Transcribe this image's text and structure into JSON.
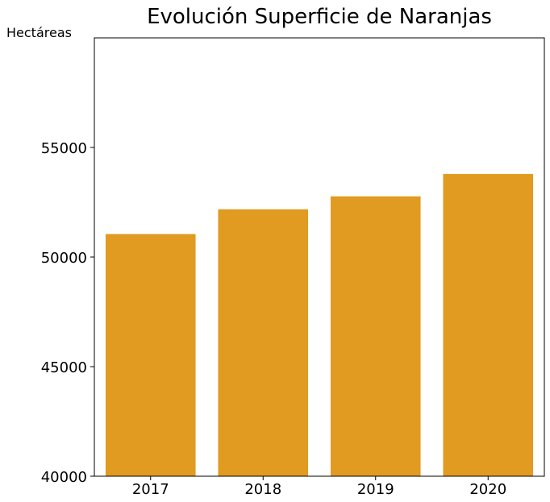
{
  "chart_data": {
    "type": "bar",
    "title": "Evolución Superficie de Naranjas",
    "xlabel": "",
    "ylabel": "Hectáreas",
    "categories": [
      "2017",
      "2018",
      "2019",
      "2020"
    ],
    "values": [
      51050,
      52180,
      52770,
      53790
    ],
    "ylim": [
      40000,
      60000
    ],
    "yticks": [
      40000,
      45000,
      50000,
      55000
    ],
    "bar_color": "#e09b20",
    "grid": false,
    "legend": "none"
  }
}
